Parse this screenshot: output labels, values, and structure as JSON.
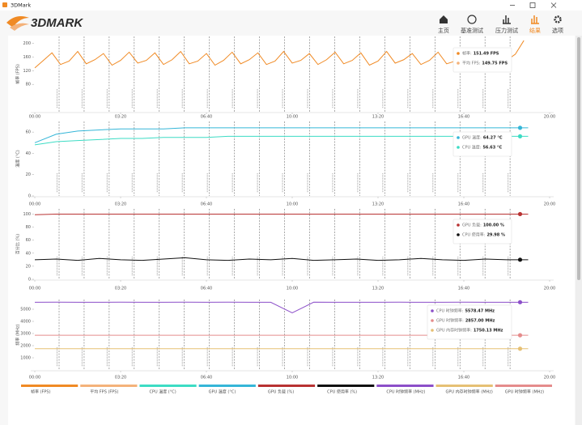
{
  "window": {
    "title": "3DMark"
  },
  "header": {
    "logo": "3DMARK",
    "nav": [
      "主页",
      "基准测试",
      "压力测试",
      "结果",
      "选项"
    ],
    "active": 3,
    "active_color": "#f08a24"
  },
  "chart_data": [
    {
      "type": "line",
      "y_label": "帧率 (FPS)",
      "xlim": [
        0,
        1200
      ],
      "xticks": [
        {
          "value": 0,
          "label": "00:00"
        },
        {
          "value": 200,
          "label": "03:20"
        },
        {
          "value": 400,
          "label": "06:40"
        },
        {
          "value": 600,
          "label": "10:00"
        },
        {
          "value": 800,
          "label": "13:20"
        },
        {
          "value": 1000,
          "label": "16:40"
        },
        {
          "value": 1200,
          "label": "20:00"
        }
      ],
      "ylim": [
        0,
        220
      ],
      "yticks": [
        80,
        120,
        160,
        200
      ],
      "grid": false,
      "end_markers": false,
      "x": [
        0,
        20,
        40,
        60,
        80,
        100,
        120,
        140,
        160,
        180,
        200,
        220,
        240,
        260,
        280,
        300,
        320,
        340,
        360,
        380,
        400,
        420,
        440,
        460,
        480,
        500,
        520,
        540,
        560,
        580,
        600,
        620,
        640,
        660,
        680,
        700,
        720,
        740,
        760,
        780,
        800,
        820,
        840,
        860,
        880,
        900,
        920,
        940,
        960,
        980,
        1000,
        1020,
        1040,
        1060,
        1080,
        1100,
        1120,
        1140
      ],
      "series": [
        {
          "name": "帧率:",
          "color": "#f08a24",
          "readout": "151.49 FPS",
          "values": [
            128,
            150,
            172,
            138,
            148,
            176,
            140,
            152,
            170,
            136,
            150,
            174,
            142,
            150,
            172,
            138,
            152,
            176,
            140,
            148,
            170,
            136,
            150,
            174,
            140,
            152,
            172,
            138,
            148,
            176,
            142,
            150,
            170,
            138,
            152,
            174,
            140,
            150,
            172,
            136,
            148,
            176,
            142,
            152,
            170,
            138,
            150,
            174,
            140,
            148,
            172,
            136,
            152,
            176,
            142,
            150,
            168,
            208
          ]
        }
      ],
      "extra_readouts": [
        {
          "name": "平均 FPS:",
          "color": "#f4b27a",
          "readout": "149.75 FPS"
        }
      ]
    },
    {
      "type": "line",
      "y_label": "温度 (°C)",
      "xlim": [
        0,
        1200
      ],
      "xticks": [
        {
          "value": 0,
          "label": "00:00"
        },
        {
          "value": 200,
          "label": "03:20"
        },
        {
          "value": 400,
          "label": "06:40"
        },
        {
          "value": 600,
          "label": "10:00"
        },
        {
          "value": 800,
          "label": "13:20"
        },
        {
          "value": 1000,
          "label": "16:40"
        },
        {
          "value": 1200,
          "label": "20:00"
        }
      ],
      "ylim": [
        0,
        70
      ],
      "yticks": [
        0,
        20,
        40,
        60
      ],
      "grid": false,
      "end_markers": true,
      "x": [
        0,
        50,
        100,
        150,
        200,
        250,
        300,
        350,
        400,
        450,
        500,
        550,
        600,
        650,
        700,
        750,
        800,
        850,
        900,
        950,
        1000,
        1050,
        1100,
        1150
      ],
      "series": [
        {
          "name": "GPU 温度:",
          "color": "#35b6d8",
          "readout": "64.27 °C",
          "values": [
            50,
            58,
            61,
            62,
            63,
            63,
            63,
            64,
            64,
            64,
            64,
            64,
            64,
            64,
            64,
            64,
            64,
            64,
            64,
            64,
            64,
            64,
            64,
            64
          ]
        },
        {
          "name": "CPU 温度:",
          "color": "#3ddcc4",
          "readout": "56.63 °C",
          "values": [
            48,
            51,
            52,
            53,
            54,
            54,
            55,
            55,
            55,
            56,
            56,
            56,
            56,
            56,
            56,
            56,
            56,
            56,
            56,
            56,
            56,
            56,
            56,
            56
          ]
        }
      ]
    },
    {
      "type": "line",
      "y_label": "百分比 (%)",
      "xlim": [
        0,
        1200
      ],
      "xticks": [
        {
          "value": 0,
          "label": "00:00"
        },
        {
          "value": 200,
          "label": "03:20"
        },
        {
          "value": 400,
          "label": "06:40"
        },
        {
          "value": 600,
          "label": "10:00"
        },
        {
          "value": 800,
          "label": "13:20"
        },
        {
          "value": 1000,
          "label": "16:40"
        },
        {
          "value": 1200,
          "label": "20:00"
        }
      ],
      "ylim": [
        0,
        108
      ],
      "yticks": [
        0,
        20,
        40,
        60,
        80,
        100
      ],
      "grid": false,
      "end_markers": true,
      "x": [
        0,
        50,
        100,
        150,
        200,
        250,
        300,
        350,
        400,
        450,
        500,
        550,
        600,
        650,
        700,
        750,
        800,
        850,
        900,
        950,
        1000,
        1050,
        1100,
        1150
      ],
      "series": [
        {
          "name": "GPU 负载:",
          "color": "#b83232",
          "readout": "100.00 %",
          "values": [
            99,
            100,
            100,
            100,
            100,
            100,
            100,
            100,
            100,
            100,
            100,
            100,
            100,
            100,
            100,
            100,
            100,
            100,
            100,
            100,
            100,
            100,
            100,
            100
          ]
        },
        {
          "name": "CPU 使用率:",
          "color": "#111111",
          "readout": "29.98 %",
          "values": [
            30,
            31,
            29,
            32,
            30,
            29,
            31,
            33,
            30,
            29,
            31,
            30,
            32,
            29,
            30,
            31,
            29,
            30,
            32,
            30,
            29,
            31,
            30,
            30
          ]
        }
      ]
    },
    {
      "type": "line",
      "y_label": "频率 (MHz)",
      "xlim": [
        0,
        1200
      ],
      "xticks": [
        {
          "value": 0,
          "label": "00:00"
        },
        {
          "value": 200,
          "label": "03:20"
        },
        {
          "value": 400,
          "label": "06:40"
        },
        {
          "value": 600,
          "label": "10:00"
        },
        {
          "value": 800,
          "label": "13:20"
        },
        {
          "value": 1000,
          "label": "16:40"
        },
        {
          "value": 1200,
          "label": "20:00"
        }
      ],
      "ylim": [
        0,
        5800
      ],
      "yticks": [
        1000,
        2000,
        3000,
        4000,
        5000
      ],
      "grid": false,
      "end_markers": true,
      "x": [
        0,
        50,
        100,
        150,
        200,
        250,
        300,
        350,
        400,
        450,
        500,
        550,
        600,
        650,
        700,
        750,
        800,
        850,
        900,
        950,
        1000,
        1050,
        1100,
        1150
      ],
      "series": [
        {
          "name": "CPU 时钟频率:",
          "color": "#8c4fc9",
          "readout": "5578.47 MHz",
          "values": [
            5578,
            5580,
            5575,
            5578,
            5580,
            5576,
            5578,
            5579,
            5577,
            5580,
            5578,
            5575,
            4700,
            5580,
            5578,
            5576,
            5578,
            5580,
            5577,
            5578,
            5579,
            5578,
            5577,
            5578
          ]
        },
        {
          "name": "GPU 时钟频率:",
          "color": "#e58c8c",
          "readout": "2857.00 MHz",
          "values": [
            2860,
            2857,
            2857,
            2857,
            2857,
            2857,
            2857,
            2857,
            2857,
            2857,
            2857,
            2857,
            2857,
            2857,
            2857,
            2857,
            2857,
            2857,
            2857,
            2857,
            2857,
            2857,
            2857,
            2857
          ]
        },
        {
          "name": "GPU 内存时钟频率:",
          "color": "#e6c074",
          "readout": "1750.13 MHz",
          "values": [
            1750,
            1750,
            1750,
            1750,
            1750,
            1750,
            1750,
            1750,
            1750,
            1750,
            1750,
            1750,
            1750,
            1750,
            1750,
            1750,
            1750,
            1750,
            1750,
            1750,
            1750,
            1750,
            1750,
            1750
          ]
        }
      ]
    }
  ],
  "legend": [
    {
      "name": "帧率 (FPS)",
      "color": "#f08a24"
    },
    {
      "name": "平均 FPS (FPS)",
      "color": "#f4b27a"
    },
    {
      "name": "CPU 温度 (°C)",
      "color": "#3ddcc4"
    },
    {
      "name": "GPU 温度 (°C)",
      "color": "#35b6d8"
    },
    {
      "name": "GPU 负载 (%)",
      "color": "#b83232"
    },
    {
      "name": "CPU 使用率 (%)",
      "color": "#111111"
    },
    {
      "name": "CPU 时钟频率 (MHz)",
      "color": "#8c4fc9"
    },
    {
      "name": "GPU 内存时钟频率 (MHz)",
      "color": "#e6c074"
    },
    {
      "name": "GPU 时钟频率 (MHz)",
      "color": "#e58c8c"
    }
  ]
}
